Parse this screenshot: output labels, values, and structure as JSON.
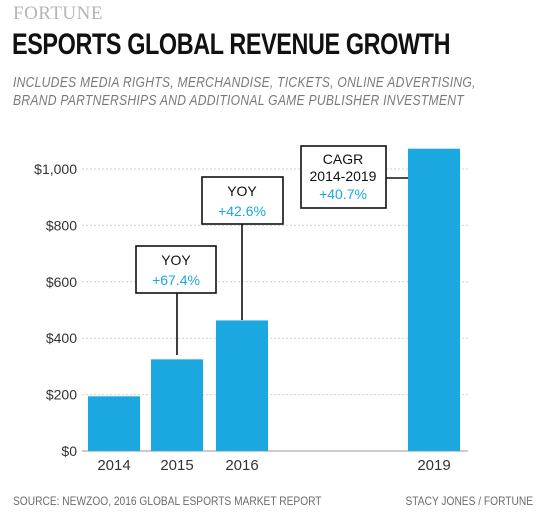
{
  "header": {
    "brand": "FORTUNE",
    "title": "ESPORTS GLOBAL REVENUE GROWTH",
    "subtitle_line1": "INCLUDES MEDIA RIGHTS, MERCHANDISE, TICKETS, ONLINE ADVERTISING,",
    "subtitle_line2": "BRAND PARTNERSHIPS AND ADDITIONAL GAME PUBLISHER INVESTMENT"
  },
  "chart_data": {
    "type": "bar",
    "categories": [
      "2014",
      "2015",
      "2016",
      "2019"
    ],
    "values": [
      194,
      325,
      463,
      1072
    ],
    "ylim": [
      0,
      1000
    ],
    "yticks": [
      "$0",
      "$200",
      "$400",
      "$600",
      "$800",
      "$1,000"
    ],
    "grid": true,
    "bar_color": "#1ba8e0",
    "annotations": [
      {
        "label": "YOY",
        "value": "+67.4%",
        "category": "2015"
      },
      {
        "label": "YOY",
        "value": "+42.6%",
        "category": "2016"
      },
      {
        "label": "CAGR",
        "label2": "2014-2019",
        "value": "+40.7%",
        "category": "2019"
      }
    ],
    "annotation_value_color": "#1ba8e0"
  },
  "footer": {
    "source": "SOURCE: NEWZOO, 2016 GLOBAL ESPORTS MARKET REPORT",
    "credit": "STACY JONES / FORTUNE"
  }
}
